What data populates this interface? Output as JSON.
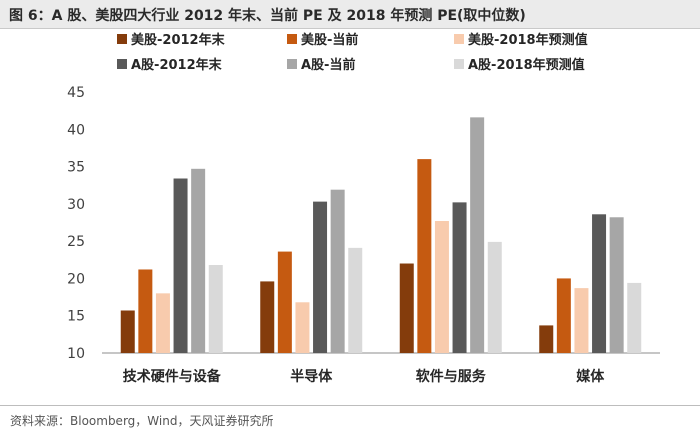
{
  "figure": {
    "title": "图 6：A 股、美股四大行业 2012 年末、当前 PE 及 2018 年预测 PE(取中位数)",
    "source": "资料来源：Bloomberg，Wind，天风证券研究所"
  },
  "chart_data": {
    "type": "bar",
    "categories": [
      "技术硬件与设备",
      "半导体",
      "软件与服务",
      "媒体"
    ],
    "ylim": [
      10,
      45
    ],
    "yticks": [
      10,
      15,
      20,
      25,
      30,
      35,
      40,
      45
    ],
    "grid": false,
    "legend_position": "top",
    "series": [
      {
        "name": "美股-2012年末",
        "color": "#843c0c",
        "values": [
          15.7,
          19.6,
          22.0,
          13.7
        ]
      },
      {
        "name": "美股-当前",
        "color": "#c55a11",
        "values": [
          21.2,
          23.6,
          36.0,
          20.0
        ]
      },
      {
        "name": "美股-2018年预测值",
        "color": "#f8cbad",
        "values": [
          18.0,
          16.8,
          27.7,
          18.7
        ]
      },
      {
        "name": "A股-2012年末",
        "color": "#595959",
        "values": [
          33.4,
          30.3,
          30.2,
          28.6
        ]
      },
      {
        "name": "A股-当前",
        "color": "#a6a6a6",
        "values": [
          34.7,
          31.9,
          41.6,
          28.2
        ]
      },
      {
        "name": "A股-2018年预测值",
        "color": "#d9d9d9",
        "values": [
          21.8,
          24.1,
          24.9,
          19.4
        ]
      }
    ]
  }
}
